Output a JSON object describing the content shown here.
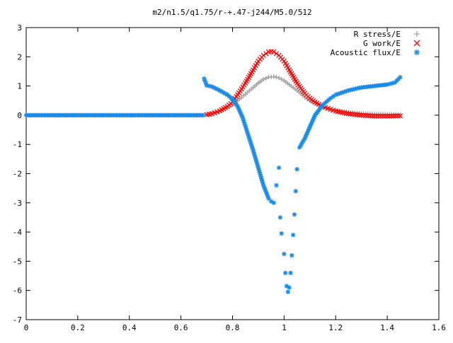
{
  "chart_data": {
    "type": "scatter",
    "title": "m2/n1.5/q1.75/r-+.47-j244/M5.0/512",
    "xlabel": "",
    "ylabel": "",
    "xlim": [
      0,
      1.6
    ],
    "ylim": [
      -7,
      3
    ],
    "x_ticks": [
      "0",
      "0.2",
      "0.4",
      "0.6",
      "0.8",
      "1",
      "1.2",
      "1.4",
      "1.6"
    ],
    "y_ticks": [
      "3",
      "2",
      "1",
      "0",
      "-1",
      "-2",
      "-3",
      "-4",
      "-5",
      "-6",
      "-7"
    ],
    "grid": false,
    "legend_position": "top-right",
    "series": [
      {
        "name": "R stress/E",
        "marker": "plus",
        "color": "#a0a0a0",
        "x": [
          0.7,
          0.72,
          0.75,
          0.78,
          0.8,
          0.82,
          0.85,
          0.88,
          0.9,
          0.92,
          0.94,
          0.96,
          0.98,
          1.0,
          1.02,
          1.05,
          1.08,
          1.1,
          1.12,
          1.15,
          1.18,
          1.2,
          1.25,
          1.3,
          1.35,
          1.4,
          1.45
        ],
        "y": [
          0.02,
          0.05,
          0.12,
          0.25,
          0.35,
          0.5,
          0.72,
          0.95,
          1.1,
          1.23,
          1.3,
          1.32,
          1.28,
          1.18,
          1.05,
          0.85,
          0.62,
          0.5,
          0.4,
          0.28,
          0.2,
          0.16,
          0.1,
          0.06,
          0.04,
          0.03,
          0.02
        ]
      },
      {
        "name": "G work/E",
        "marker": "cross",
        "color": "#ff0000",
        "x": [
          0.7,
          0.72,
          0.75,
          0.78,
          0.8,
          0.82,
          0.85,
          0.88,
          0.9,
          0.92,
          0.94,
          0.95,
          0.96,
          0.98,
          1.0,
          1.02,
          1.05,
          1.08,
          1.1,
          1.12,
          1.15,
          1.18,
          1.2,
          1.25,
          1.3,
          1.35,
          1.4,
          1.45
        ],
        "y": [
          0.02,
          0.05,
          0.15,
          0.3,
          0.45,
          0.7,
          1.1,
          1.55,
          1.85,
          2.05,
          2.17,
          2.18,
          2.17,
          2.05,
          1.85,
          1.55,
          1.1,
          0.75,
          0.58,
          0.45,
          0.3,
          0.2,
          0.14,
          0.05,
          0.0,
          -0.03,
          -0.03,
          -0.02
        ]
      },
      {
        "name": "Acoustic flux/E",
        "marker": "star",
        "color": "#1a8ae6",
        "x": [
          0.69,
          0.7,
          0.72,
          0.75,
          0.78,
          0.8,
          0.82,
          0.84,
          0.86,
          0.88,
          0.9,
          0.92,
          0.94,
          0.95,
          0.96,
          0.97,
          0.98,
          0.985,
          0.99,
          1.0,
          1.005,
          1.01,
          1.015,
          1.02,
          1.025,
          1.03,
          1.035,
          1.04,
          1.045,
          1.05,
          1.06,
          1.07,
          1.08,
          1.1,
          1.12,
          1.15,
          1.18,
          1.2,
          1.25,
          1.3,
          1.35,
          1.4,
          1.43,
          1.45
        ],
        "y": [
          1.25,
          1.02,
          0.98,
          0.85,
          0.7,
          0.55,
          0.3,
          -0.1,
          -0.65,
          -1.2,
          -1.8,
          -2.4,
          -2.85,
          -2.95,
          -3.0,
          -2.4,
          -1.8,
          -3.5,
          -4.05,
          -4.75,
          -5.4,
          -5.85,
          -6.05,
          -5.9,
          -5.4,
          -4.8,
          -4.1,
          -3.4,
          -2.6,
          -1.85,
          -1.1,
          -0.95,
          -0.8,
          -0.4,
          0.0,
          0.35,
          0.58,
          0.7,
          0.85,
          0.95,
          1.0,
          1.05,
          1.12,
          1.3
        ]
      }
    ]
  }
}
